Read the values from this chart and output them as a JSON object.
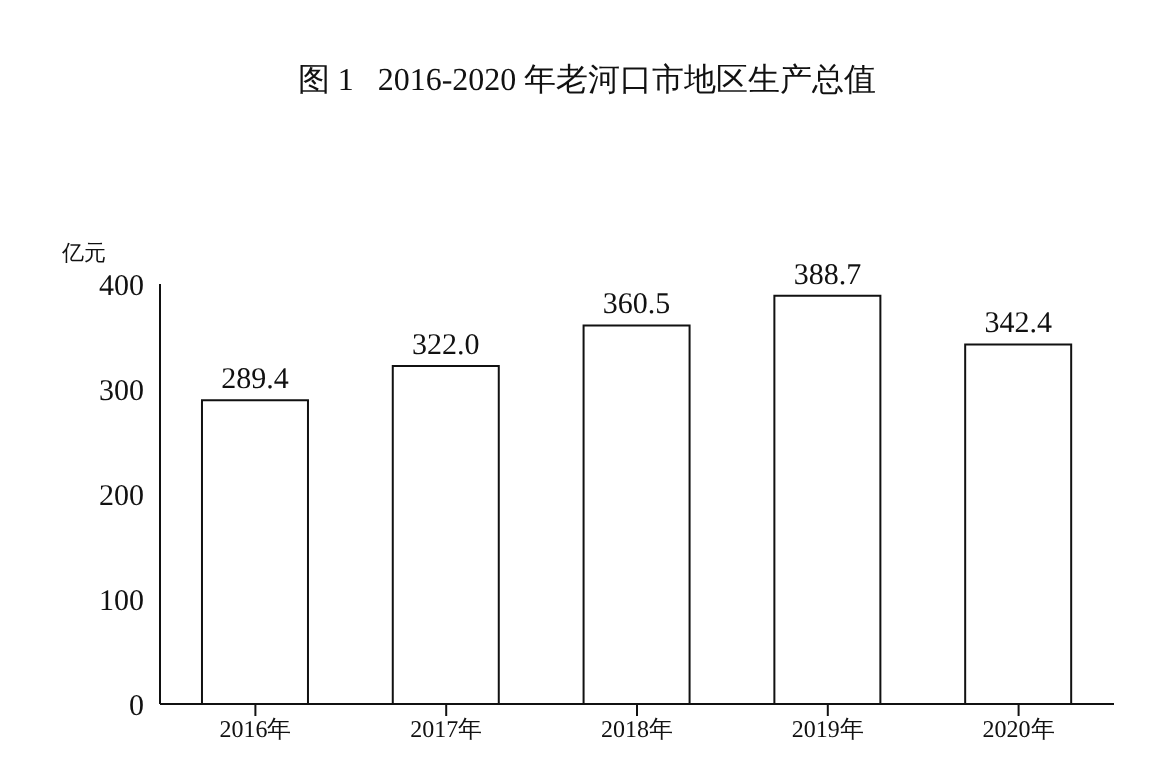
{
  "chart_data": {
    "type": "bar",
    "title": "图 1   2016-2020 年老河口市地区生产总值",
    "ylabel": "亿元",
    "categories": [
      "2016年",
      "2017年",
      "2018年",
      "2019年",
      "2020年"
    ],
    "values": [
      289.4,
      322.0,
      360.5,
      388.7,
      342.4
    ],
    "value_labels": [
      "289.4",
      "322.0",
      "360.5",
      "388.7",
      "342.4"
    ],
    "color": "#ffffff",
    "ylim": [
      0,
      400
    ],
    "yticks": [
      0,
      100,
      200,
      300,
      400
    ],
    "grid": false,
    "legend": false
  }
}
